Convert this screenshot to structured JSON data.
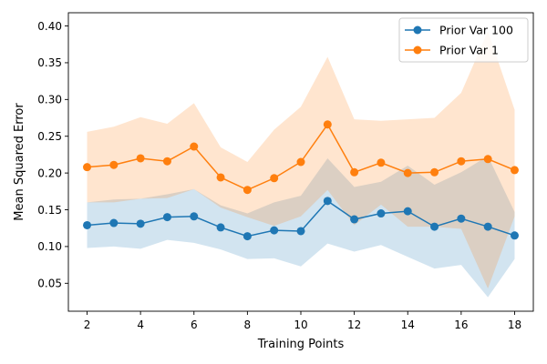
{
  "chart_data": {
    "type": "line",
    "xlabel": "Training Points",
    "ylabel": "Mean Squared Error",
    "xlim": [
      1.3,
      18.7
    ],
    "ylim": [
      0.012,
      0.418
    ],
    "x_ticks": [
      2,
      4,
      6,
      8,
      10,
      12,
      14,
      16,
      18
    ],
    "y_ticks": [
      0.05,
      0.1,
      0.15,
      0.2,
      0.25,
      0.3,
      0.35,
      0.4
    ],
    "y_tick_labels": [
      "0.05",
      "0.10",
      "0.15",
      "0.20",
      "0.25",
      "0.30",
      "0.35",
      "0.40"
    ],
    "grid": false,
    "legend_position": "top-right",
    "x": [
      2,
      3,
      4,
      5,
      6,
      7,
      8,
      9,
      10,
      11,
      12,
      13,
      14,
      15,
      16,
      17,
      18
    ],
    "series": [
      {
        "name": "Prior Var 100",
        "color": "#1f77b4",
        "band_color": "#1f77b4",
        "values": [
          0.129,
          0.132,
          0.131,
          0.14,
          0.141,
          0.126,
          0.114,
          0.122,
          0.121,
          0.162,
          0.137,
          0.145,
          0.148,
          0.127,
          0.138,
          0.127,
          0.115
        ],
        "lower": [
          0.098,
          0.1,
          0.097,
          0.109,
          0.105,
          0.096,
          0.083,
          0.084,
          0.073,
          0.104,
          0.093,
          0.102,
          0.086,
          0.07,
          0.075,
          0.031,
          0.083
        ],
        "upper": [
          0.16,
          0.164,
          0.165,
          0.171,
          0.178,
          0.156,
          0.145,
          0.16,
          0.169,
          0.22,
          0.181,
          0.188,
          0.21,
          0.184,
          0.201,
          0.223,
          0.147
        ]
      },
      {
        "name": "Prior Var 1",
        "color": "#ff7f0e",
        "band_color": "#ff7f0e",
        "values": [
          0.208,
          0.211,
          0.22,
          0.216,
          0.236,
          0.194,
          0.177,
          0.193,
          0.215,
          0.266,
          0.201,
          0.214,
          0.2,
          0.201,
          0.216,
          0.219,
          0.204
        ],
        "lower": [
          0.16,
          0.16,
          0.165,
          0.166,
          0.178,
          0.153,
          0.14,
          0.128,
          0.141,
          0.177,
          0.129,
          0.157,
          0.127,
          0.127,
          0.124,
          0.043,
          0.141
        ],
        "upper": [
          0.256,
          0.263,
          0.276,
          0.267,
          0.295,
          0.235,
          0.215,
          0.259,
          0.29,
          0.358,
          0.273,
          0.271,
          0.273,
          0.275,
          0.309,
          0.393,
          0.286
        ]
      }
    ]
  }
}
